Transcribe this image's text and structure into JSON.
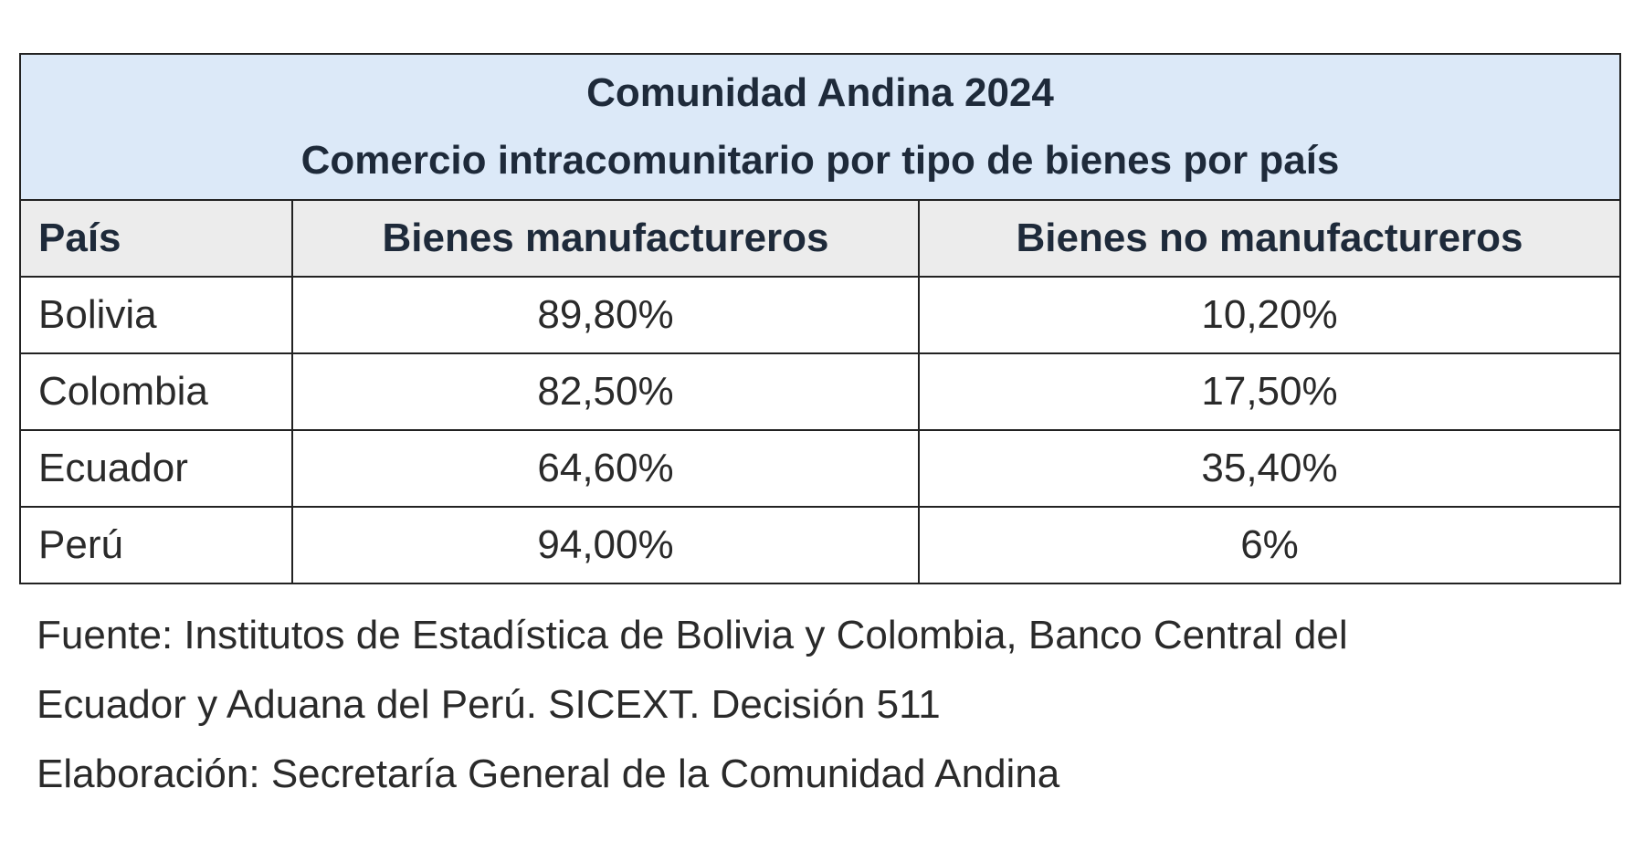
{
  "chart_data": {
    "type": "table",
    "title": "Comunidad Andina 2024",
    "subtitle": "Comercio intracomunitario por tipo de bienes por país",
    "columns": [
      "País",
      "Bienes manufactureros",
      "Bienes no manufactureros"
    ],
    "rows": [
      {
        "country": "Bolivia",
        "manufactureros": "89,80%",
        "no_manufactureros": "10,20%"
      },
      {
        "country": "Colombia",
        "manufactureros": "82,50%",
        "no_manufactureros": "17,50%"
      },
      {
        "country": "Ecuador",
        "manufactureros": "64,60%",
        "no_manufactureros": "35,40%"
      },
      {
        "country": "Perú",
        "manufactureros": "94,00%",
        "no_manufactureros": "6%"
      }
    ],
    "values": {
      "manufactureros": [
        89.8,
        82.5,
        64.6,
        94.0
      ],
      "no_manufactureros": [
        10.2,
        17.5,
        35.4,
        6.0
      ]
    }
  },
  "notes": {
    "source_line_1": "Fuente: Institutos de Estadística de Bolivia y Colombia, Banco Central del",
    "source_line_2": "Ecuador y Aduana del Perú. SICEXT. Decisión 511",
    "elaboration": "Elaboración: Secretaría General de la Comunidad Andina"
  },
  "colors": {
    "title_background": "#dce9f8",
    "header_background": "#ececec",
    "border": "#222222"
  }
}
